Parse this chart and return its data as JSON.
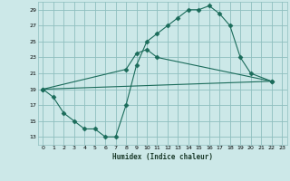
{
  "title": "",
  "xlabel": "Humidex (Indice chaleur)",
  "bg_color": "#cce8e8",
  "grid_color": "#8fbfbf",
  "line_color": "#1a6b5a",
  "xlim": [
    -0.5,
    23.5
  ],
  "ylim": [
    12,
    30
  ],
  "xticks": [
    0,
    1,
    2,
    3,
    4,
    5,
    6,
    7,
    8,
    9,
    10,
    11,
    12,
    13,
    14,
    15,
    16,
    17,
    18,
    19,
    20,
    21,
    22,
    23
  ],
  "yticks": [
    13,
    15,
    17,
    19,
    21,
    23,
    25,
    27,
    29
  ],
  "series1_x": [
    0,
    1,
    2,
    3,
    4,
    5,
    6,
    7,
    8,
    9,
    10,
    11,
    12,
    13,
    14,
    15,
    16,
    17,
    18,
    19,
    20,
    22
  ],
  "series1_y": [
    19,
    18,
    16,
    15,
    14,
    14,
    13,
    13,
    17,
    22,
    25,
    26,
    27,
    28,
    29,
    29,
    29.5,
    28.5,
    27,
    23,
    21,
    20
  ],
  "series2_x": [
    0,
    8,
    9,
    10,
    11,
    22
  ],
  "series2_y": [
    19,
    21.5,
    23.5,
    24,
    23,
    20
  ],
  "series3_x": [
    0,
    22
  ],
  "series3_y": [
    19,
    20
  ]
}
